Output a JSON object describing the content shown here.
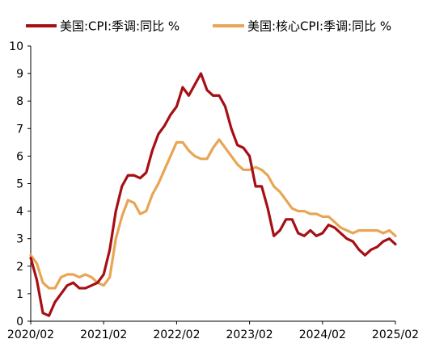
{
  "chart_data": {
    "type": "line",
    "title": "",
    "xlabel": "",
    "ylabel": "",
    "ylim": [
      0,
      10
    ],
    "yticks": [
      0,
      1,
      2,
      3,
      4,
      5,
      6,
      7,
      8,
      9,
      10
    ],
    "xlim": [
      "2020/02",
      "2025/02"
    ],
    "xtick_labels": [
      "2020/02",
      "2021/02",
      "2022/02",
      "2023/02",
      "2024/02",
      "2025/02"
    ],
    "grid": false,
    "legend_position": "top",
    "x": [
      "2020/02",
      "2020/03",
      "2020/04",
      "2020/05",
      "2020/06",
      "2020/07",
      "2020/08",
      "2020/09",
      "2020/10",
      "2020/11",
      "2020/12",
      "2021/01",
      "2021/02",
      "2021/03",
      "2021/04",
      "2021/05",
      "2021/06",
      "2021/07",
      "2021/08",
      "2021/09",
      "2021/10",
      "2021/11",
      "2021/12",
      "2022/01",
      "2022/02",
      "2022/03",
      "2022/04",
      "2022/05",
      "2022/06",
      "2022/07",
      "2022/08",
      "2022/09",
      "2022/10",
      "2022/11",
      "2022/12",
      "2023/01",
      "2023/02",
      "2023/03",
      "2023/04",
      "2023/05",
      "2023/06",
      "2023/07",
      "2023/08",
      "2023/09",
      "2023/10",
      "2023/11",
      "2023/12",
      "2024/01",
      "2024/02",
      "2024/03",
      "2024/04",
      "2024/05",
      "2024/06",
      "2024/07",
      "2024/08",
      "2024/09",
      "2024/10",
      "2024/11",
      "2024/12",
      "2025/01",
      "2025/02"
    ],
    "series": [
      {
        "name": "美国:CPI:季调:同比 %",
        "color": "#a50f15",
        "values": [
          2.3,
          1.5,
          0.3,
          0.2,
          0.7,
          1.0,
          1.3,
          1.4,
          1.2,
          1.2,
          1.3,
          1.4,
          1.7,
          2.6,
          4.0,
          4.9,
          5.3,
          5.3,
          5.2,
          5.4,
          6.2,
          6.8,
          7.1,
          7.5,
          7.8,
          8.5,
          8.2,
          8.6,
          9.0,
          8.4,
          8.2,
          8.2,
          7.8,
          7.0,
          6.4,
          6.3,
          6.0,
          4.9,
          4.9,
          4.1,
          3.1,
          3.3,
          3.7,
          3.7,
          3.2,
          3.1,
          3.3,
          3.1,
          3.2,
          3.5,
          3.4,
          3.2,
          3.0,
          2.9,
          2.6,
          2.4,
          2.6,
          2.7,
          2.9,
          3.0,
          2.8
        ]
      },
      {
        "name": "美国:核心CPI:季调:同比 %",
        "color": "#e8a555",
        "values": [
          2.4,
          2.1,
          1.4,
          1.2,
          1.2,
          1.6,
          1.7,
          1.7,
          1.6,
          1.7,
          1.6,
          1.4,
          1.3,
          1.6,
          3.0,
          3.8,
          4.4,
          4.3,
          3.9,
          4.0,
          4.6,
          5.0,
          5.5,
          6.0,
          6.5,
          6.5,
          6.2,
          6.0,
          5.9,
          5.9,
          6.3,
          6.6,
          6.3,
          6.0,
          5.7,
          5.5,
          5.5,
          5.6,
          5.5,
          5.3,
          4.9,
          4.7,
          4.4,
          4.1,
          4.0,
          4.0,
          3.9,
          3.9,
          3.8,
          3.8,
          3.6,
          3.4,
          3.3,
          3.2,
          3.3,
          3.3,
          3.3,
          3.3,
          3.2,
          3.3,
          3.1
        ]
      }
    ]
  }
}
